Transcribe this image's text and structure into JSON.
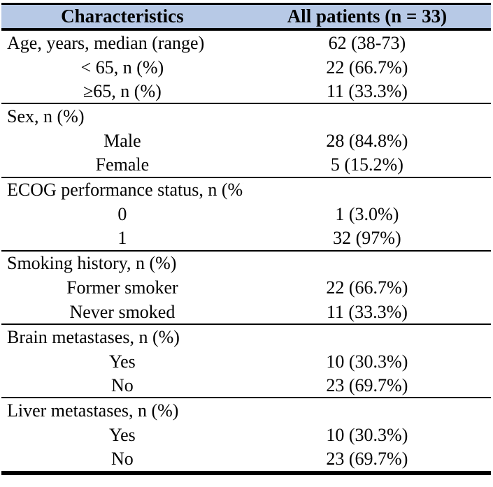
{
  "table": {
    "colors": {
      "header_bg": "#b7c9e6",
      "border": "#000000",
      "text": "#000000"
    },
    "header": {
      "col1": "Characteristics",
      "col2": "All patients (n = 33)"
    },
    "rows": [
      {
        "label": "Age, years, median (range)",
        "value": "62 (38-73)",
        "type": "group",
        "section_end": false
      },
      {
        "label": "< 65, n (%)",
        "value": "22 (66.7%)",
        "type": "sub",
        "section_end": false
      },
      {
        "label": "≥65, n (%)",
        "value": "11 (33.3%)",
        "type": "sub",
        "section_end": true
      },
      {
        "label": "Sex, n (%)",
        "value": "",
        "type": "group",
        "section_end": false
      },
      {
        "label": "Male",
        "value": "28 (84.8%)",
        "type": "sub",
        "section_end": false
      },
      {
        "label": "Female",
        "value": "5 (15.2%)",
        "type": "sub",
        "section_end": true
      },
      {
        "label": "ECOG performance status, n (%)",
        "value": "",
        "type": "group",
        "section_end": false
      },
      {
        "label": "0",
        "value": "1 (3.0%)",
        "type": "sub",
        "section_end": false
      },
      {
        "label": "1",
        "value": "32 (97%)",
        "type": "sub",
        "section_end": true
      },
      {
        "label": "Smoking history, n (%)",
        "value": "",
        "type": "group",
        "section_end": false
      },
      {
        "label": "Former smoker",
        "value": "22 (66.7%)",
        "type": "sub",
        "section_end": false
      },
      {
        "label": "Never smoked",
        "value": "11 (33.3%)",
        "type": "sub",
        "section_end": true
      },
      {
        "label": "Brain metastases, n (%)",
        "value": "",
        "type": "group",
        "section_end": false
      },
      {
        "label": "Yes",
        "value": "10 (30.3%)",
        "type": "sub",
        "section_end": false
      },
      {
        "label": "No",
        "value": "23 (69.7%)",
        "type": "sub",
        "section_end": true
      },
      {
        "label": "Liver metastases, n (%)",
        "value": "",
        "type": "group",
        "section_end": false
      },
      {
        "label": "Yes",
        "value": "10 (30.3%)",
        "type": "sub",
        "section_end": false
      },
      {
        "label": "No",
        "value": "23 (69.7%)",
        "type": "sub",
        "section_end": true
      }
    ]
  }
}
